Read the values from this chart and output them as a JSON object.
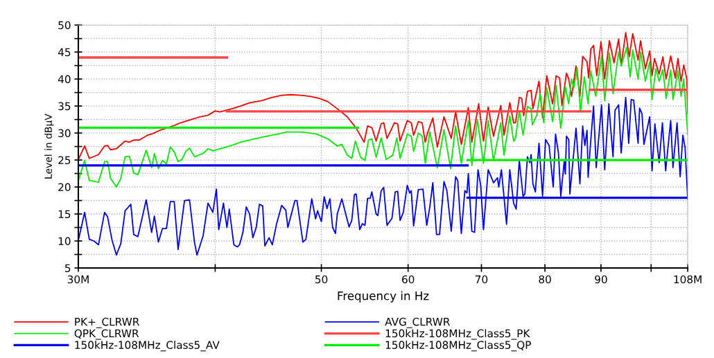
{
  "chart_data": {
    "type": "line",
    "xlabel": "Frequency in Hz",
    "ylabel": "Level in dBµV",
    "log": "x",
    "grid": true,
    "legend": "bottom",
    "marker": "none",
    "line_style": "solid",
    "xlim": [
      30,
      108
    ],
    "xticks": [
      {
        "value": 30,
        "label": "30M"
      },
      {
        "value": 40,
        "label": null
      },
      50,
      60,
      70,
      80,
      90,
      {
        "value": 100,
        "label": null
      },
      {
        "value": 108,
        "label": "108M"
      }
    ],
    "ylim": [
      5,
      50
    ],
    "yticks": [
      5,
      {
        "value": 7.5,
        "label": null
      },
      10,
      {
        "value": 12.5,
        "label": null
      },
      15,
      {
        "value": 17.5,
        "label": null
      },
      20,
      {
        "value": 22.5,
        "label": null
      },
      25,
      {
        "value": 27.5,
        "label": null
      },
      30,
      {
        "value": 32.5,
        "label": null
      },
      35,
      {
        "value": 37.5,
        "label": null
      },
      40,
      {
        "value": 42.5,
        "label": null
      },
      45,
      {
        "value": 47.5,
        "label": null
      },
      50
    ],
    "series": [
      {
        "name": "PK+_CLRWR",
        "color": "#ff0000",
        "x": [
          30.0,
          30.4,
          30.7,
          31.3,
          31.7,
          31.9,
          32.1,
          32.5,
          33.1,
          33.4,
          33.7,
          34.1,
          34.7,
          35.1,
          35.6,
          36.1,
          36.6,
          37.2,
          37.9,
          38.6,
          39.4,
          40.0,
          40.4,
          41.4,
          42.2,
          43.0,
          44.1,
          45.1,
          46.0,
          46.9,
          47.9,
          48.8,
          49.8,
          50.7,
          52.0,
          52.8,
          53.8,
          54.7,
          55.1,
          55.6,
          56.1,
          56.7,
          57.0,
          57.4,
          58.3,
          58.7,
          59.0,
          59.9,
          60.4,
          60.7,
          61.3,
          61.8,
          62.2,
          62.5,
          63.2,
          63.8,
          64.7,
          65.7,
          66.3,
          67.1,
          68.1,
          68.6,
          69.6,
          70.3,
          71.0,
          71.8,
          72.9,
          73.4,
          74.3,
          74.9,
          75.2,
          75.8,
          76.2,
          76.5,
          77.1,
          77.7,
          78.0,
          79.0,
          79.6,
          80.3,
          81.3,
          81.9,
          82.5,
          82.9,
          83.7,
          84.1,
          84.6,
          85.4,
          86.1,
          86.6,
          87.4,
          87.7,
          88.1,
          88.6,
          89.2,
          90.0,
          90.7,
          91.6,
          92.5,
          93.4,
          93.9,
          94.8,
          95.5,
          96.2,
          97.3,
          97.8,
          98.8,
          99.7,
          100.2,
          100.7,
          101.7,
          102.5,
          103.2,
          104.2,
          105.2,
          105.8,
          106.5,
          107.1,
          107.8,
          108.0
        ],
        "values": [
          25.1,
          27.6,
          25.3,
          26.0,
          27.6,
          27.7,
          26.9,
          27.1,
          28.5,
          28.3,
          28.7,
          28.7,
          29.6,
          29.9,
          30.5,
          30.9,
          31.3,
          31.9,
          32.4,
          32.9,
          33.3,
          34.1,
          33.9,
          34.5,
          35.0,
          35.6,
          36.0,
          36.6,
          37.0,
          37.1,
          37.0,
          36.8,
          36.4,
          35.8,
          34.1,
          33.0,
          30.9,
          28.3,
          31.3,
          31.0,
          28.5,
          31.7,
          31.9,
          29.0,
          31.9,
          31.7,
          28.5,
          32.3,
          31.9,
          29.6,
          32.1,
          31.9,
          28.3,
          30.0,
          32.8,
          27.4,
          33.0,
          29.0,
          33.9,
          27.9,
          34.7,
          28.3,
          35.4,
          28.5,
          34.8,
          29.4,
          35.1,
          29.6,
          35.6,
          31.9,
          31.9,
          36.6,
          36.4,
          33.2,
          37.7,
          37.9,
          34.5,
          39.6,
          32.8,
          40.6,
          35.4,
          40.6,
          40.2,
          35.1,
          41.1,
          40.0,
          36.8,
          42.4,
          36.8,
          44.2,
          43.2,
          40.2,
          45.6,
          46.2,
          40.6,
          46.9,
          40.0,
          47.1,
          43.0,
          47.4,
          42.6,
          48.6,
          44.1,
          48.4,
          43.5,
          47.1,
          41.9,
          45.2,
          40.6,
          43.8,
          40.9,
          44.1,
          40.0,
          44.3,
          40.2,
          43.8,
          39.6,
          42.6,
          40.0,
          33.6
        ]
      },
      {
        "name": "QPK_CLRWR",
        "color": "#00ee00",
        "x": [
          30.0,
          30.4,
          30.7,
          31.3,
          31.7,
          31.9,
          32.1,
          32.5,
          32.8,
          33.1,
          33.4,
          33.7,
          34.0,
          34.6,
          35.0,
          35.2,
          35.5,
          35.8,
          36.1,
          36.4,
          36.7,
          37.0,
          37.3,
          37.6,
          37.9,
          38.3,
          39.0,
          39.4,
          39.8,
          40.6,
          41.4,
          42.2,
          43.4,
          44.5,
          45.6,
          46.5,
          47.9,
          48.8,
          49.5,
          50.7,
          51.7,
          52.2,
          52.8,
          53.3,
          53.7,
          54.3,
          54.8,
          55.2,
          55.6,
          56.1,
          56.7,
          57.3,
          58.1,
          58.6,
          59.0,
          59.9,
          60.4,
          60.7,
          61.3,
          61.8,
          62.2,
          62.8,
          63.8,
          64.7,
          65.6,
          66.3,
          67.1,
          68.1,
          68.6,
          69.4,
          70.3,
          71.0,
          71.8,
          72.9,
          73.4,
          74.3,
          74.9,
          75.2,
          75.8,
          76.4,
          77.1,
          77.7,
          77.9,
          78.6,
          79.2,
          79.8,
          80.3,
          81.3,
          81.9,
          82.7,
          83.5,
          84.1,
          84.6,
          85.0,
          85.6,
          86.2,
          86.9,
          87.6,
          88.1,
          89.0,
          90.1,
          90.7,
          91.6,
          92.3,
          93.4,
          93.9,
          95.0,
          95.7,
          96.2,
          97.3,
          97.8,
          98.8,
          99.7,
          100.2,
          101.0,
          101.7,
          102.5,
          103.2,
          104.2,
          104.7,
          105.8,
          106.5,
          107.1,
          108.0
        ],
        "values": [
          21.2,
          24.9,
          21.2,
          20.9,
          24.7,
          24.7,
          21.6,
          20.0,
          21.6,
          25.6,
          25.7,
          22.6,
          22.3,
          26.8,
          23.6,
          26.2,
          23.4,
          24.9,
          24.3,
          27.4,
          26.5,
          24.7,
          25.1,
          26.6,
          27.2,
          25.6,
          26.2,
          27.1,
          26.7,
          27.2,
          27.7,
          28.3,
          28.9,
          29.4,
          29.8,
          30.2,
          30.2,
          30.0,
          29.8,
          28.9,
          27.6,
          27.9,
          25.9,
          25.3,
          28.5,
          25.5,
          24.9,
          28.7,
          28.9,
          25.5,
          29.1,
          25.1,
          25.9,
          29.1,
          25.3,
          29.8,
          29.4,
          26.6,
          30.0,
          29.4,
          24.4,
          30.2,
          23.6,
          30.6,
          23.4,
          31.3,
          24.4,
          32.3,
          24.0,
          32.5,
          24.4,
          32.3,
          24.9,
          31.9,
          25.9,
          33.2,
          28.5,
          29.1,
          34.1,
          29.6,
          34.9,
          34.5,
          31.5,
          33.2,
          37.3,
          31.9,
          38.4,
          32.1,
          38.8,
          30.9,
          38.6,
          35.4,
          40.0,
          38.4,
          42.1,
          33.9,
          40.4,
          35.4,
          41.5,
          36.8,
          44.1,
          36.0,
          44.8,
          37.3,
          45.0,
          42.4,
          45.9,
          40.4,
          45.4,
          40.0,
          45.0,
          39.6,
          43.2,
          36.2,
          41.9,
          39.6,
          41.7,
          36.4,
          41.7,
          36.2,
          41.5,
          36.8,
          40.0,
          29.8
        ]
      },
      {
        "name": "150kHz-108MHz_Class5_AV",
        "color": "#0000ee",
        "x": [
          30,
          68,
          null,
          68,
          108
        ],
        "values": [
          24,
          24,
          null,
          18,
          18
        ]
      },
      {
        "name": "AVG_CLRWR",
        "color": "#0000ff",
        "x": [
          30.0,
          30.4,
          30.7,
          31.0,
          31.3,
          31.7,
          31.9,
          32.2,
          32.5,
          32.8,
          33.1,
          33.5,
          33.7,
          34.0,
          34.6,
          35.0,
          35.2,
          35.5,
          35.8,
          36.1,
          36.4,
          36.7,
          37.0,
          37.5,
          37.9,
          38.3,
          38.5,
          39.0,
          39.4,
          39.8,
          40.1,
          40.3,
          40.7,
          41.0,
          41.2,
          41.6,
          41.9,
          42.1,
          42.4,
          42.7,
          43.0,
          43.3,
          43.6,
          43.9,
          44.2,
          44.4,
          44.8,
          45.1,
          45.5,
          46.0,
          46.4,
          46.6,
          47.3,
          47.5,
          48.1,
          48.4,
          48.8,
          49.0,
          49.4,
          49.6,
          50.0,
          50.3,
          50.6,
          50.9,
          51.2,
          51.5,
          51.7,
          52.2,
          53.0,
          53.3,
          53.6,
          53.8,
          54.2,
          54.5,
          54.8,
          55.1,
          55.4,
          55.6,
          56.1,
          56.3,
          56.7,
          57.0,
          57.4,
          58.0,
          58.4,
          58.7,
          59.0,
          59.4,
          59.9,
          60.2,
          60.4,
          60.7,
          61.3,
          61.9,
          62.4,
          62.8,
          63.2,
          63.7,
          64.1,
          64.7,
          65.1,
          65.7,
          66.3,
          66.6,
          67.1,
          67.6,
          67.9,
          68.1,
          68.6,
          69.0,
          69.5,
          69.9,
          70.3,
          71.0,
          71.8,
          72.4,
          72.6,
          73.0,
          73.8,
          74.3,
          74.9,
          75.3,
          75.8,
          76.4,
          76.7,
          77.1,
          77.5,
          77.7,
          78.0,
          78.4,
          79.0,
          79.6,
          80.1,
          80.7,
          81.4,
          81.8,
          82.3,
          82.7,
          83.3,
          83.5,
          83.7,
          84.1,
          84.3,
          85.4,
          86.1,
          86.6,
          87.0,
          87.4,
          87.6,
          88.1,
          88.6,
          89.1,
          90.1,
          90.7,
          91.5,
          91.8,
          92.3,
          92.7,
          93.4,
          93.9,
          94.8,
          95.4,
          95.9,
          96.4,
          97.3,
          97.6,
          98.1,
          98.5,
          99.7,
          100.2,
          100.8,
          101.7,
          102.4,
          103.1,
          104.2,
          104.7,
          105.6,
          106.3,
          106.9,
          107.4,
          108.0
        ],
        "values": [
          10.1,
          15.3,
          10.3,
          10.0,
          9.3,
          15.3,
          14.5,
          10.2,
          7.4,
          9.5,
          15.6,
          16.8,
          11.2,
          10.8,
          17.6,
          11.6,
          14.6,
          9.8,
          12.3,
          12.3,
          17.3,
          17.3,
          8.4,
          17.5,
          17.6,
          9.7,
          7.4,
          11.0,
          17.0,
          15.3,
          19.6,
          12.1,
          17.0,
          12.5,
          15.9,
          9.3,
          8.9,
          9.3,
          11.6,
          16.3,
          15.0,
          10.6,
          12.5,
          16.8,
          16.5,
          9.1,
          10.6,
          9.3,
          13.1,
          16.6,
          15.7,
          12.5,
          17.5,
          17.5,
          9.8,
          10.3,
          15.3,
          17.8,
          14.1,
          15.6,
          13.6,
          18.2,
          16.0,
          17.8,
          12.5,
          11.4,
          15.0,
          17.8,
          12.6,
          13.8,
          18.6,
          18.7,
          12.1,
          13.2,
          12.9,
          17.9,
          17.9,
          19.1,
          15.0,
          14.7,
          19.3,
          19.9,
          12.9,
          14.2,
          19.1,
          19.2,
          13.8,
          15.3,
          20.3,
          18.9,
          19.3,
          12.8,
          19.5,
          19.6,
          12.9,
          16.3,
          20.8,
          11.2,
          11.2,
          21.0,
          19.3,
          11.8,
          21.9,
          21.2,
          11.4,
          19.3,
          18.9,
          22.5,
          11.8,
          11.6,
          23.2,
          20.2,
          12.1,
          23.2,
          20.8,
          21.7,
          20.0,
          23.2,
          13.1,
          23.2,
          17.0,
          15.9,
          24.9,
          18.3,
          18.7,
          25.6,
          24.5,
          26.0,
          20.6,
          19.1,
          28.1,
          18.3,
          28.8,
          27.7,
          20.0,
          29.8,
          26.3,
          18.3,
          24.7,
          22.4,
          29.4,
          28.8,
          18.7,
          30.9,
          20.6,
          31.3,
          27.7,
          30.5,
          21.8,
          28.8,
          35.0,
          23.6,
          35.2,
          23.2,
          35.4,
          31.5,
          25.6,
          34.2,
          35.2,
          26.3,
          36.6,
          28.1,
          36.2,
          36.1,
          28.1,
          34.6,
          33.6,
          27.9,
          33.0,
          23.0,
          31.7,
          24.5,
          31.9,
          23.0,
          32.3,
          23.6,
          31.9,
          21.9,
          29.6,
          27.3,
          17.8
        ]
      },
      {
        "name": "150kHz-108MHz_Class5_PK",
        "color": "#ff4444",
        "x": [
          30,
          41,
          null,
          41,
          88,
          null,
          88,
          108
        ],
        "values": [
          44,
          44,
          null,
          34,
          34,
          null,
          38,
          38
        ]
      },
      {
        "name": "150kHz-108MHz_Class5_QP",
        "color": "#00ee00",
        "x": [
          30,
          54,
          null,
          68,
          108
        ],
        "values": [
          31,
          31,
          null,
          25,
          25
        ]
      }
    ]
  }
}
